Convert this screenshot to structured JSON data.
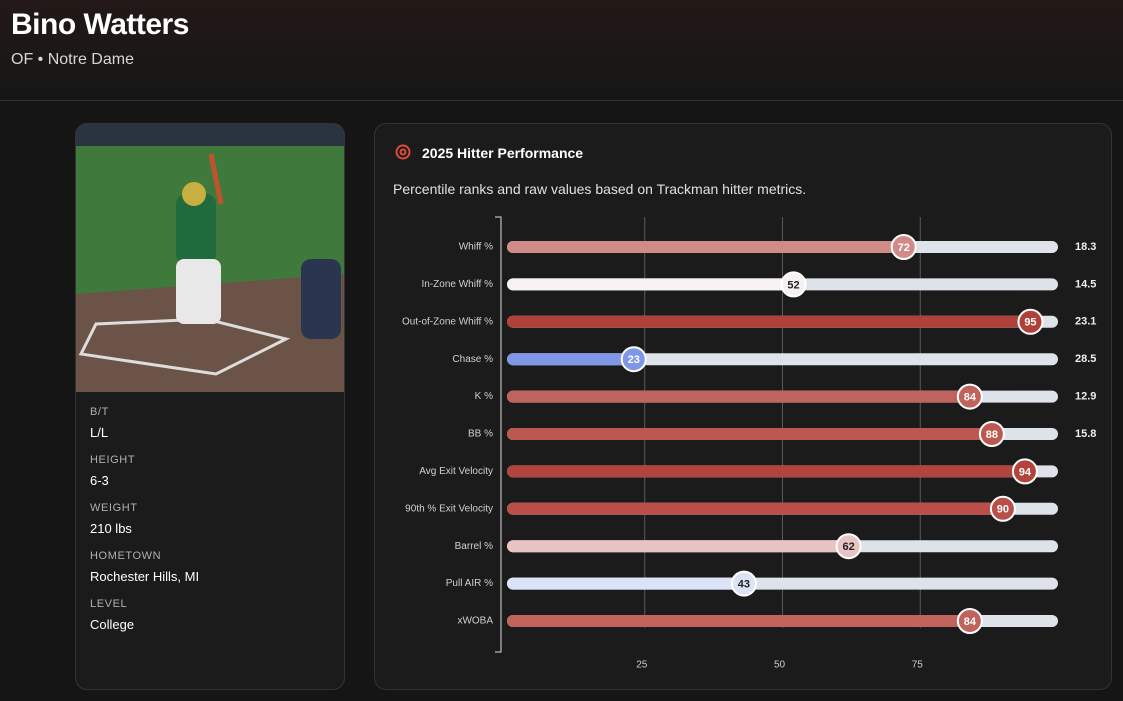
{
  "header": {
    "name": "Bino Watters",
    "subtitle": "OF • Notre Dame"
  },
  "profile": {
    "fields": [
      {
        "label": "B/T",
        "value": "L/L"
      },
      {
        "label": "HEIGHT",
        "value": "6-3"
      },
      {
        "label": "WEIGHT",
        "value": "210 lbs"
      },
      {
        "label": "HOMETOWN",
        "value": "Rochester Hills, MI"
      },
      {
        "label": "LEVEL",
        "value": "College"
      }
    ]
  },
  "chart_data": {
    "type": "percentile_bar",
    "title": "2025 Hitter Performance",
    "subtitle": "Percentile ranks and raw values based on Trackman hitter metrics.",
    "categories": [
      "Whiff %",
      "In-Zone Whiff %",
      "Out-of-Zone Whiff %",
      "Chase %",
      "K %",
      "BB %",
      "Avg Exit Velocity",
      "90th % Exit Velocity",
      "Barrel %",
      "Pull AIR %",
      "xWOBA"
    ],
    "values": [
      72,
      52,
      95,
      23,
      84,
      88,
      94,
      90,
      62,
      43,
      84
    ],
    "raw_values": [
      18.3,
      14.5,
      23.1,
      28.5,
      12.9,
      15.8,
      null,
      null,
      null,
      null,
      null
    ],
    "colors": [
      "#d08b88",
      "#f6f2f2",
      "#b0403a",
      "#8097e8",
      "#c0635d",
      "#bc5850",
      "#b2443c",
      "#b94f48",
      "#e8c5c3",
      "#dde3f7",
      "#c0635d"
    ],
    "track_color": "#dde3e8",
    "xlim": [
      0,
      100
    ],
    "xticks": [
      25,
      50,
      75
    ],
    "grid": true
  }
}
